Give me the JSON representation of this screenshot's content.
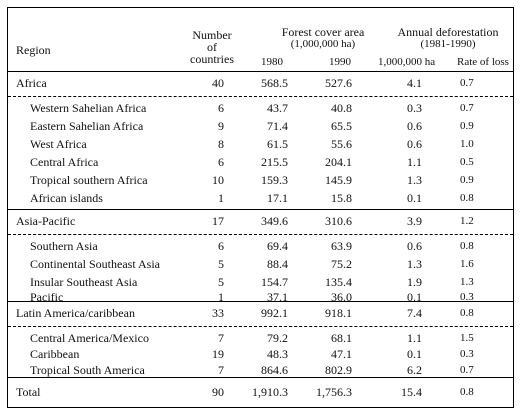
{
  "header": {
    "region": "Region",
    "num_countries_1": "Number",
    "num_countries_2": "of",
    "num_countries_3": "countries",
    "forest_cover_1": "Forest cover area",
    "forest_cover_2": "(1,000,000 ha)",
    "year_1980": "1980",
    "year_1990": "1990",
    "deforest_1": "Annual deforestation",
    "deforest_2": "(1981-1990)",
    "unit_ha": "1,000,000 ha",
    "rate_of_loss": "Rate of loss"
  },
  "rows": [
    {
      "region": "Africa",
      "n": "40",
      "y1980": "568.5",
      "y1990": "527.6",
      "ha": "4.1",
      "rate": "0.7"
    },
    {
      "region": "Western Sahelian Africa",
      "n": "6",
      "y1980": "43.7",
      "y1990": "40.8",
      "ha": "0.3",
      "rate": "0.7"
    },
    {
      "region": "Eastern Sahelian Africa",
      "n": "9",
      "y1980": "71.4",
      "y1990": "65.5",
      "ha": "0.6",
      "rate": "0.9"
    },
    {
      "region": "West Africa",
      "n": "8",
      "y1980": "61.5",
      "y1990": "55.6",
      "ha": "0.6",
      "rate": "1.0"
    },
    {
      "region": "Central Africa",
      "n": "6",
      "y1980": "215.5",
      "y1990": "204.1",
      "ha": "1.1",
      "rate": "0.5"
    },
    {
      "region": "Tropical southern Africa",
      "n": "10",
      "y1980": "159.3",
      "y1990": "145.9",
      "ha": "1.3",
      "rate": "0.9"
    },
    {
      "region": "African islands",
      "n": "1",
      "y1980": "17.1",
      "y1990": "15.8",
      "ha": "0.1",
      "rate": "0.8"
    },
    {
      "region": "Asia-Pacific",
      "n": "17",
      "y1980": "349.6",
      "y1990": "310.6",
      "ha": "3.9",
      "rate": "1.2"
    },
    {
      "region": "Southern Asia",
      "n": "6",
      "y1980": "69.4",
      "y1990": "63.9",
      "ha": "0.6",
      "rate": "0.8"
    },
    {
      "region": "Continental Southeast Asia",
      "n": "5",
      "y1980": "88.4",
      "y1990": "75.2",
      "ha": "1.3",
      "rate": "1.6"
    },
    {
      "region": "Insular Southeast Asia",
      "n": "5",
      "y1980": "154.7",
      "y1990": "135.4",
      "ha": "1.9",
      "rate": "1.3"
    },
    {
      "region": "Pacific",
      "n": "1",
      "y1980": "37.1",
      "y1990": "36.0",
      "ha": "0.1",
      "rate": "0.3"
    },
    {
      "region": "Latin America/caribbean",
      "n": "33",
      "y1980": "992.1",
      "y1990": "918.1",
      "ha": "7.4",
      "rate": "0.8"
    },
    {
      "region": "Central America/Mexico",
      "n": "7",
      "y1980": "79.2",
      "y1990": "68.1",
      "ha": "1.1",
      "rate": "1.5"
    },
    {
      "region": "Caribbean",
      "n": "19",
      "y1980": "48.3",
      "y1990": "47.1",
      "ha": "0.1",
      "rate": "0.3"
    },
    {
      "region": "Tropical South America",
      "n": "7",
      "y1980": "864.6",
      "y1990": "802.9",
      "ha": "6.2",
      "rate": "0.7"
    },
    {
      "region": "Total",
      "n": "90",
      "y1980": "1,910.3",
      "y1990": "1,756.3",
      "ha": "15.4",
      "rate": "0.8"
    }
  ]
}
